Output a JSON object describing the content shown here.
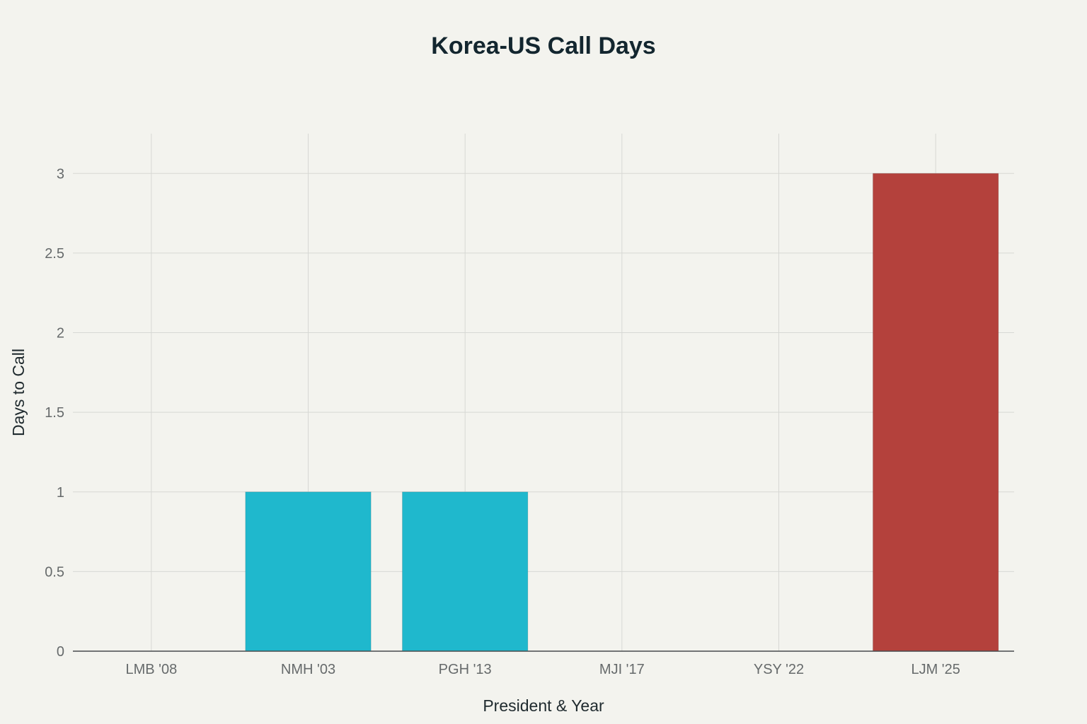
{
  "chart_data": {
    "type": "bar",
    "title": "Korea-US Call Days",
    "xlabel": "President & Year",
    "ylabel": "Days to Call",
    "categories": [
      "LMB '08",
      "NMH '03",
      "PGH '13",
      "MJI '17",
      "YSY '22",
      "LJM '25"
    ],
    "values": [
      0,
      1,
      1,
      0,
      0,
      3
    ],
    "bar_colors": [
      "#1fb8cd",
      "#1fb8cd",
      "#1fb8cd",
      "#1fb8cd",
      "#1fb8cd",
      "#b4413c"
    ],
    "ylim": [
      0,
      3.25
    ],
    "yticks": [
      0,
      0.5,
      1,
      1.5,
      2,
      2.5,
      3
    ],
    "ytick_labels": [
      "0",
      "0.5",
      "1",
      "1.5",
      "2",
      "2.5",
      "3"
    ],
    "grid": true,
    "legend": "none"
  }
}
